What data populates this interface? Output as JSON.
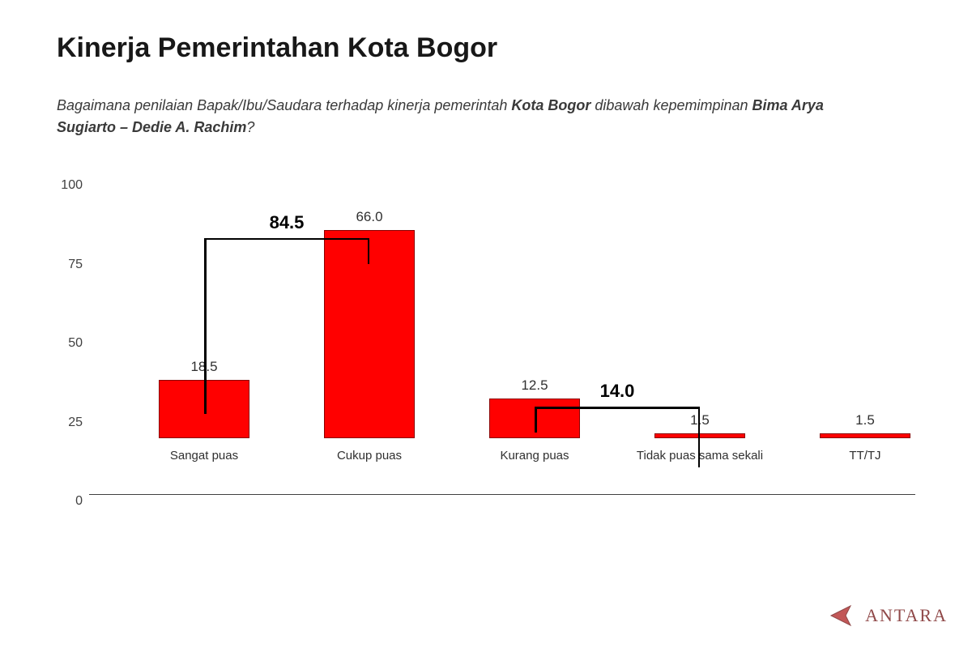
{
  "title": "Kinerja Pemerintahan Kota Bogor",
  "subtitle_parts": {
    "p1": "Bagaimana penilaian Bapak/Ibu/Saudara terhadap kinerja pemerintah ",
    "b1": "Kota Bogor",
    "p2": " dibawah kepemimpinan ",
    "b2": "Bima Arya Sugiarto – Dedie A. Rachim",
    "p3": "?"
  },
  "chart": {
    "type": "bar",
    "ylim": [
      0,
      100
    ],
    "ytick_step": 25,
    "yticks": [
      0,
      25,
      50,
      75,
      100
    ],
    "categories": [
      "Sangat puas",
      "Cukup puas",
      "Kurang puas",
      "Tidak puas sama sekali",
      "TT/TJ"
    ],
    "values": [
      18.5,
      66.0,
      12.5,
      1.5,
      1.5
    ],
    "value_labels": [
      "18.5",
      "66.0",
      "12.5",
      "1.5",
      "1.5"
    ],
    "bar_color": "#ff0000",
    "bar_border": "#8a0000",
    "background_color": "#ffffff",
    "axis_color": "#404040",
    "text_color": "#303030",
    "bar_width_ratio": 0.55,
    "title_fontsize": 34,
    "label_fontsize": 15,
    "value_fontsize": 17,
    "ytick_fontsize": 16,
    "brackets": [
      {
        "from": 0,
        "to": 1,
        "label": "84.5"
      },
      {
        "from": 2,
        "to": 3,
        "label": "14.0"
      }
    ],
    "bracket_fontsize": 22,
    "bracket_color": "#000000"
  },
  "watermark": {
    "text": "ANTARA",
    "color": "#7d2a2a"
  }
}
